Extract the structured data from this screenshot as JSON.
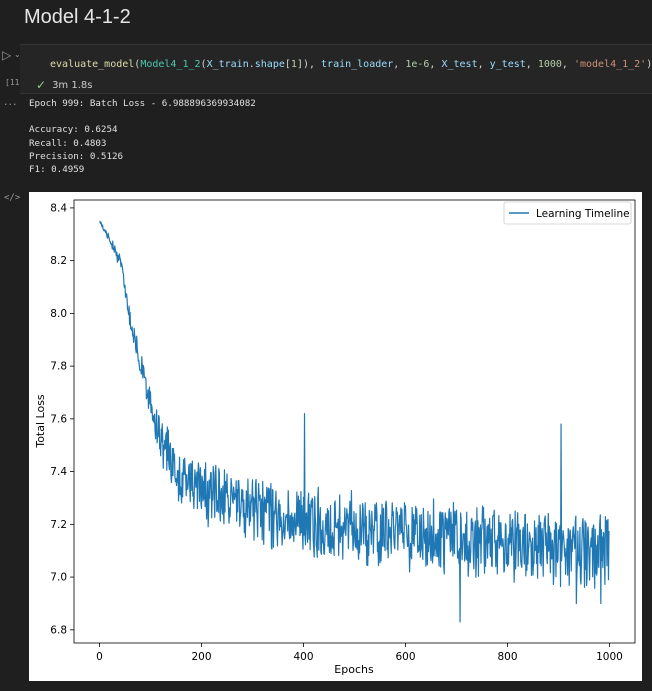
{
  "page": {
    "heading": "Model 4-1-2"
  },
  "cell": {
    "execution_count": "[11]",
    "duration": "3m 1.8s",
    "run_icon": "play-icon",
    "status_icon": "check-icon",
    "code_tokens": {
      "fn": "evaluate_model",
      "p1": "(",
      "cls": "Model4_1_2",
      "p2": "(",
      "v1": "X_train",
      "p3": ".",
      "v2": "shape",
      "p4": "[",
      "n1": "1",
      "p5": "]), ",
      "v3": "train_loader",
      "p6": ", ",
      "n2": "1e-6",
      "p7": ", ",
      "v4": "X_test",
      "p8": ", ",
      "v5": "y_test",
      "p9": ", ",
      "n3": "1000",
      "p10": ", ",
      "s1": "'model4_1_2'",
      "p11": ")"
    }
  },
  "output": {
    "dots": "...",
    "text": "Epoch 999: Batch Loss - 6.988896369934082\n\nAccuracy: 0.6254\nRecall: 0.4803\nPrecision: 0.5126\nF1: 0.4959"
  },
  "code_toggle": "</>",
  "chart_data": {
    "type": "line",
    "xlabel": "Epochs",
    "ylabel": "Total Loss",
    "xlim": [
      -50,
      1050
    ],
    "ylim": [
      6.75,
      8.43
    ],
    "xticks": [
      0,
      200,
      400,
      600,
      800,
      1000
    ],
    "yticks": [
      6.8,
      7.0,
      7.2,
      7.4,
      7.6,
      7.8,
      8.0,
      8.2,
      8.4
    ],
    "legend_position": "top-right",
    "grid": false,
    "series": [
      {
        "name": "Learning Timeline",
        "color": "#1f77b4",
        "anchors": [
          [
            0,
            8.35
          ],
          [
            20,
            8.28
          ],
          [
            40,
            8.2
          ],
          [
            50,
            8.1
          ],
          [
            60,
            7.98
          ],
          [
            75,
            7.85
          ],
          [
            90,
            7.72
          ],
          [
            110,
            7.58
          ],
          [
            130,
            7.48
          ],
          [
            160,
            7.38
          ],
          [
            200,
            7.33
          ],
          [
            260,
            7.29
          ],
          [
            320,
            7.25
          ],
          [
            400,
            7.22
          ],
          [
            500,
            7.19
          ],
          [
            600,
            7.16
          ],
          [
            700,
            7.14
          ],
          [
            800,
            7.12
          ],
          [
            900,
            7.11
          ],
          [
            1000,
            7.1
          ]
        ],
        "noise": [
          [
            0,
            0.005
          ],
          [
            50,
            0.03
          ],
          [
            100,
            0.06
          ],
          [
            150,
            0.09
          ],
          [
            250,
            0.11
          ],
          [
            1000,
            0.12
          ]
        ],
        "spikes": [
          [
            402,
            7.62
          ],
          [
            707,
            6.83
          ],
          [
            905,
            7.58
          ],
          [
            935,
            6.9
          ],
          [
            983,
            6.9
          ],
          [
            998,
            6.99
          ]
        ]
      }
    ]
  }
}
